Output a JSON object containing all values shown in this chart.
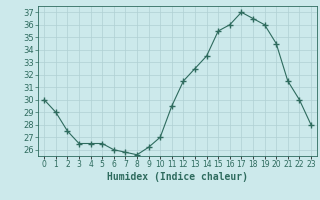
{
  "x": [
    0,
    1,
    2,
    3,
    4,
    5,
    6,
    7,
    8,
    9,
    10,
    11,
    12,
    13,
    14,
    15,
    16,
    17,
    18,
    19,
    20,
    21,
    22,
    23
  ],
  "y": [
    30,
    29,
    27.5,
    26.5,
    26.5,
    26.5,
    26,
    25.8,
    25.6,
    26.2,
    27,
    29.5,
    31.5,
    32.5,
    33.5,
    35.5,
    36,
    37,
    36.5,
    36,
    34.5,
    31.5,
    30,
    28
  ],
  "line_color": "#2e6b5e",
  "marker": "+",
  "marker_size": 4,
  "bg_color": "#cce9eb",
  "grid_color": "#b0d0d3",
  "xlabel": "Humidex (Indice chaleur)",
  "xlim": [
    -0.5,
    23.5
  ],
  "ylim": [
    25.5,
    37.5
  ],
  "yticks": [
    26,
    27,
    28,
    29,
    30,
    31,
    32,
    33,
    34,
    35,
    36,
    37
  ],
  "xtick_labels": [
    "0",
    "1",
    "2",
    "3",
    "4",
    "5",
    "6",
    "7",
    "8",
    "9",
    "10",
    "11",
    "12",
    "13",
    "14",
    "15",
    "16",
    "17",
    "18",
    "19",
    "20",
    "21",
    "22",
    "23"
  ],
  "tick_color": "#2e6b5e",
  "label_fontsize": 7,
  "tick_fontsize": 6
}
